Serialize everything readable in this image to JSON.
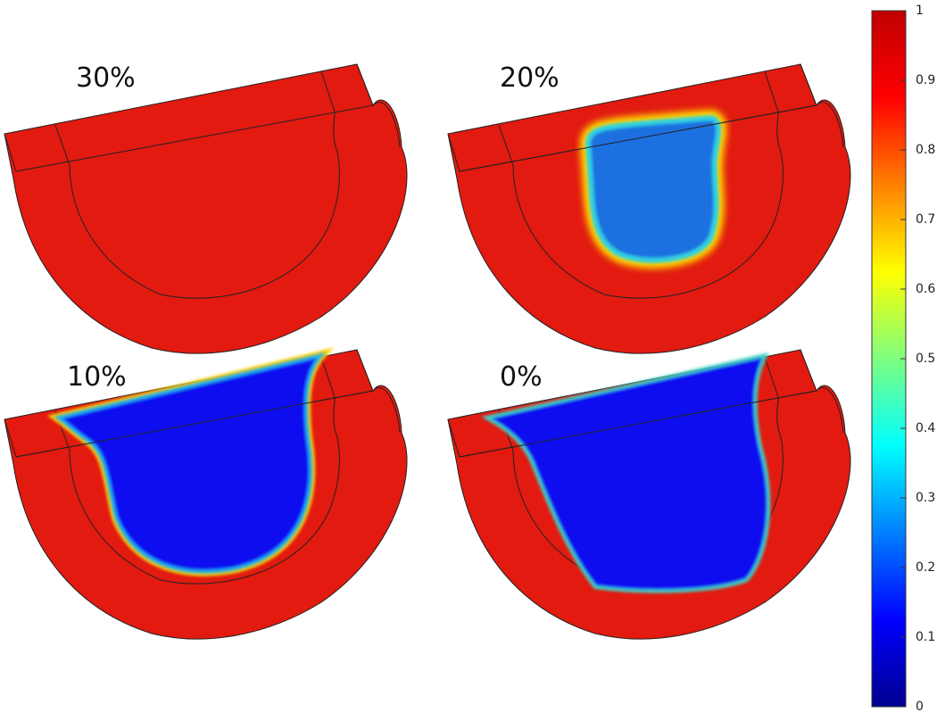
{
  "panels": [
    {
      "label": "30%"
    },
    {
      "label": "20%"
    },
    {
      "label": "10%"
    },
    {
      "label": "0%"
    }
  ],
  "colorbar": {
    "lim": [
      0,
      1
    ],
    "ticks": [
      0,
      0.1,
      0.2,
      0.3,
      0.4,
      0.5,
      0.6,
      0.7,
      0.8,
      0.9,
      1
    ]
  }
}
